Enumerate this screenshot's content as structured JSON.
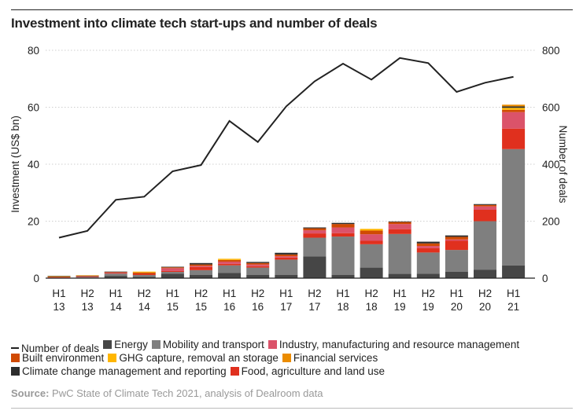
{
  "title": "Investment into climate tech start-ups and number of deals",
  "source": {
    "label": "Source:",
    "text": "PwC State of Climate Tech 2021, analysis of Dealroom data"
  },
  "chart_data": {
    "type": "bar",
    "subtype": "stacked-bar-with-line",
    "title": "Investment into climate tech start-ups and number of deals",
    "categories": [
      [
        "H1",
        "13"
      ],
      [
        "H2",
        "13"
      ],
      [
        "H1",
        "14"
      ],
      [
        "H2",
        "14"
      ],
      [
        "H1",
        "15"
      ],
      [
        "H2",
        "15"
      ],
      [
        "H1",
        "16"
      ],
      [
        "H2",
        "16"
      ],
      [
        "H1",
        "17"
      ],
      [
        "H2",
        "17"
      ],
      [
        "H1",
        "18"
      ],
      [
        "H2",
        "18"
      ],
      [
        "H1",
        "19"
      ],
      [
        "H2",
        "19"
      ],
      [
        "H1",
        "20"
      ],
      [
        "H2",
        "20"
      ],
      [
        "H1",
        "21"
      ]
    ],
    "ylabel": "Investment (US$ bn)",
    "ylabel_right": "Number of deals",
    "ylim": [
      0,
      80
    ],
    "ylim_right": [
      0,
      800
    ],
    "yticks": [
      0,
      20,
      40,
      60,
      80
    ],
    "yticks_right": [
      0,
      200,
      400,
      600,
      800
    ],
    "grid": "horizontal-dotted",
    "legend_position": "bottom",
    "series": [
      {
        "name": "Energy",
        "color": "#464646",
        "values": [
          0.1,
          0.2,
          0.8,
          0.5,
          1.6,
          1.1,
          1.8,
          1.1,
          1.1,
          7.6,
          1.1,
          3.7,
          1.5,
          1.6,
          2.3,
          3.0,
          4.5
        ]
      },
      {
        "name": "Mobility and transport",
        "color": "#7f7f7f",
        "values": [
          0.1,
          0.2,
          0.8,
          0.6,
          0.6,
          1.7,
          2.7,
          2.6,
          5.4,
          6.6,
          13.5,
          8.2,
          14.0,
          7.4,
          7.6,
          17.0,
          40.8
        ]
      },
      {
        "name": "Food, agriculture and land use",
        "color": "#e0301e",
        "values": [
          0.1,
          0.1,
          0.2,
          0.4,
          0.3,
          1.1,
          0.5,
          0.5,
          0.7,
          1.5,
          1.2,
          1.2,
          1.7,
          1.5,
          3.2,
          4.0,
          7.2
        ]
      },
      {
        "name": "Industry, manufacturing and resource management",
        "color": "#db536a",
        "values": [
          0.1,
          0.1,
          0.2,
          0.0,
          1.0,
          0.4,
          0.8,
          0.6,
          0.5,
          1.1,
          2.0,
          2.3,
          1.8,
          0.8,
          0.5,
          1.2,
          5.8
        ]
      },
      {
        "name": "Built environment",
        "color": "#d04a02",
        "values": [
          0.1,
          0.2,
          0.2,
          0.5,
          0.3,
          0.5,
          0.6,
          0.5,
          0.6,
          0.7,
          1.2,
          1.3,
          0.7,
          0.9,
          0.9,
          0.5,
          0.8
        ]
      },
      {
        "name": "GHG capture, removal an storage",
        "color": "#ffb600",
        "values": [
          0.2,
          0.0,
          0.0,
          0.3,
          0.0,
          0.0,
          0.4,
          0.0,
          0.0,
          0.0,
          0.0,
          0.6,
          0.0,
          0.0,
          0.0,
          0.0,
          0.7
        ]
      },
      {
        "name": "Climate change management and reporting",
        "color": "#2d2d2d",
        "values": [
          0.1,
          0.1,
          0.1,
          0.0,
          0.2,
          0.5,
          0.0,
          0.4,
          0.6,
          0.3,
          0.4,
          0.0,
          0.2,
          0.6,
          0.5,
          0.3,
          0.5
        ]
      },
      {
        "name": "Financial services",
        "color": "#eb8c00",
        "values": [
          0.0,
          0.1,
          0.0,
          0.0,
          0.0,
          0.0,
          0.0,
          0.0,
          0.0,
          0.0,
          0.0,
          0.0,
          0.0,
          0.0,
          0.0,
          0.0,
          0.6
        ]
      }
    ],
    "line": {
      "name": "Number of deals",
      "axis": "right",
      "color": "#222222",
      "values": [
        142,
        166,
        275,
        286,
        375,
        397,
        552,
        478,
        603,
        691,
        753,
        697,
        773,
        755,
        654,
        686,
        707
      ]
    }
  },
  "legend": {
    "rows": [
      [
        {
          "label": "Number of deals",
          "type": "line",
          "color": "#222222"
        },
        {
          "label": "Energy",
          "type": "box",
          "color": "#464646"
        },
        {
          "label": "Mobility and transport",
          "type": "box",
          "color": "#7f7f7f"
        },
        {
          "label": "Industry, manufacturing and resource management",
          "type": "box",
          "color": "#db536a"
        }
      ],
      [
        {
          "label": "Built environment",
          "type": "box",
          "color": "#d04a02"
        },
        {
          "label": "GHG capture, removal an storage",
          "type": "box",
          "color": "#ffb600"
        },
        {
          "label": "Financial services",
          "type": "box",
          "color": "#eb8c00"
        }
      ],
      [
        {
          "label": "Climate change management and reporting",
          "type": "box",
          "color": "#2d2d2d"
        },
        {
          "label": "Food, agriculture and land use",
          "type": "box",
          "color": "#e0301e"
        }
      ]
    ]
  }
}
